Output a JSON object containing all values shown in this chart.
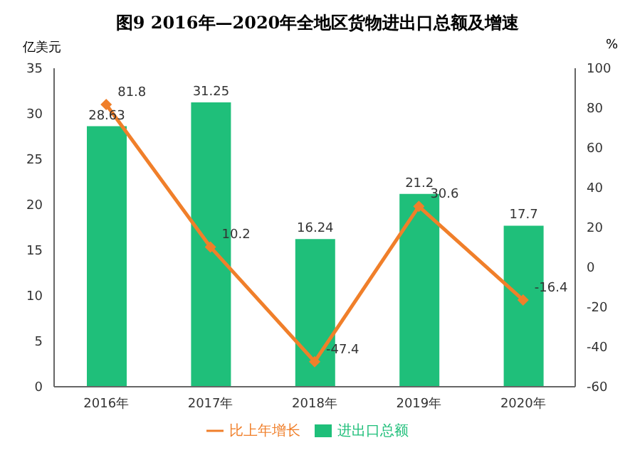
{
  "chart_data": {
    "type": "bar",
    "title": "图9 2016年—2020年全地区货物进出口总额及增速",
    "ylabel": "亿美元",
    "y2label": "%",
    "categories": [
      "2016年",
      "2017年",
      "2018年",
      "2019年",
      "2020年"
    ],
    "series": [
      {
        "name": "进出口总额",
        "color": "#1fbf7a",
        "values": [
          28.63,
          31.25,
          16.24,
          21.2,
          17.7
        ]
      },
      {
        "name": "比上年增长",
        "type": "line",
        "axis": "y2",
        "color": "#f07f2a",
        "values": [
          81.8,
          10.2,
          -47.4,
          30.6,
          -16.4
        ]
      }
    ],
    "ylim": [
      0,
      35
    ],
    "yticks": [
      0,
      5,
      10,
      15,
      20,
      25,
      30,
      35
    ],
    "y2lim": [
      -60,
      100
    ],
    "y2ticks": [
      -60,
      -40,
      -20,
      0,
      20,
      40,
      60,
      80,
      100
    ],
    "data_labels": true,
    "legend": "bottom",
    "marker": "diamond",
    "grid": false
  }
}
